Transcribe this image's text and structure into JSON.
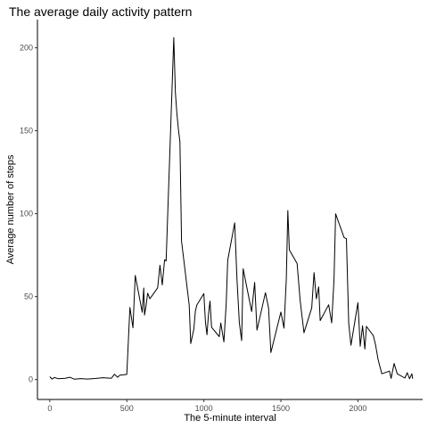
{
  "chart_data": {
    "type": "line",
    "title": "The average daily activity pattern",
    "xlabel": "The 5-minute interval",
    "ylabel": "Average number of steps",
    "xlim": [
      -80,
      2420
    ],
    "ylim": [
      -12,
      217
    ],
    "xticks": [
      0,
      500,
      1000,
      1500,
      2000
    ],
    "yticks": [
      0,
      50,
      100,
      150,
      200
    ],
    "grid": false,
    "x": [
      0,
      15,
      30,
      55,
      100,
      130,
      160,
      200,
      245,
      300,
      345,
      400,
      420,
      440,
      455,
      500,
      520,
      540,
      555,
      600,
      610,
      615,
      625,
      635,
      650,
      700,
      715,
      730,
      745,
      755,
      805,
      815,
      825,
      835,
      845,
      855,
      905,
      915,
      935,
      945,
      955,
      1000,
      1010,
      1020,
      1030,
      1040,
      1050,
      1100,
      1110,
      1130,
      1145,
      1155,
      1200,
      1215,
      1230,
      1245,
      1255,
      1310,
      1330,
      1345,
      1400,
      1420,
      1435,
      1500,
      1520,
      1535,
      1545,
      1555,
      1605,
      1625,
      1650,
      1700,
      1715,
      1730,
      1745,
      1755,
      1810,
      1830,
      1845,
      1855,
      1910,
      1925,
      1940,
      1955,
      2000,
      2015,
      2030,
      2045,
      2055,
      2100,
      2115,
      2130,
      2145,
      2155,
      2205,
      2215,
      2235,
      2255,
      2305,
      2320,
      2335,
      2350,
      2355
    ],
    "values": [
      1.7,
      0.3,
      1.2,
      0.5,
      0.8,
      1.4,
      0.2,
      0.6,
      0.3,
      0.7,
      1.1,
      0.8,
      3.2,
      1.4,
      2.7,
      3.1,
      43.5,
      31.2,
      62.8,
      40.6,
      55.2,
      38.9,
      44.4,
      52.1,
      48.7,
      55.3,
      68.9,
      57.1,
      72.3,
      71.5,
      206.2,
      173.0,
      160.3,
      150.8,
      143.2,
      83.4,
      44.9,
      21.7,
      30.4,
      41.2,
      45.0,
      51.8,
      34.7,
      27.0,
      39.2,
      47.3,
      31.5,
      25.9,
      34.1,
      22.7,
      45.9,
      71.9,
      94.5,
      60.2,
      34.4,
      23.5,
      66.8,
      41.0,
      58.6,
      29.8,
      52.4,
      43.1,
      16.3,
      40.7,
      31.0,
      60.7,
      101.9,
      78.2,
      70.0,
      47.8,
      28.2,
      43.2,
      64.5,
      48.7,
      55.9,
      35.6,
      45.1,
      34.2,
      60.4,
      99.9,
      85.6,
      84.9,
      33.8,
      20.7,
      46.3,
      20.1,
      32.4,
      18.4,
      32.1,
      26.5,
      20.6,
      12.4,
      6.9,
      3.5,
      5.1,
      0.7,
      9.7,
      3.5,
      0.9,
      4.1,
      0.5,
      3.5,
      0.5
    ]
  }
}
